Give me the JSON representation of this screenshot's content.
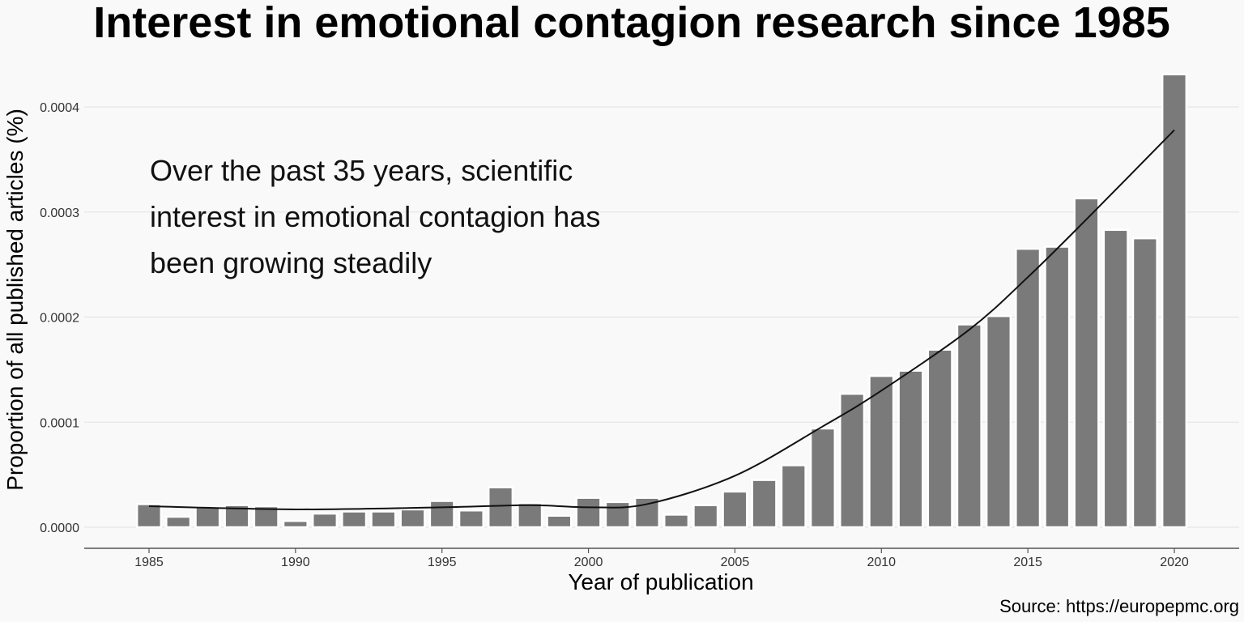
{
  "chart_data": {
    "type": "bar",
    "title": "Interest in emotional contagion research since 1985",
    "xlabel": "Year of publication",
    "ylabel": "Proportion of all published articles (%)",
    "x": [
      1985,
      1986,
      1987,
      1988,
      1989,
      1990,
      1991,
      1992,
      1993,
      1994,
      1995,
      1996,
      1997,
      1998,
      1999,
      2000,
      2001,
      2002,
      2003,
      2004,
      2005,
      2006,
      2007,
      2008,
      2009,
      2010,
      2011,
      2012,
      2013,
      2014,
      2015,
      2016,
      2017,
      2018,
      2019,
      2020
    ],
    "values": [
      2.2e-05,
      1e-05,
      1.9e-05,
      2.1e-05,
      2e-05,
      6e-06,
      1.3e-05,
      1.5e-05,
      1.5e-05,
      1.7e-05,
      2.5e-05,
      1.6e-05,
      3.8e-05,
      2.3e-05,
      1.1e-05,
      2.8e-05,
      2.4e-05,
      2.8e-05,
      1.2e-05,
      2.1e-05,
      3.4e-05,
      4.5e-05,
      5.9e-05,
      9.4e-05,
      0.000127,
      0.000144,
      0.000149,
      0.000169,
      0.000193,
      0.000201,
      0.000265,
      0.000267,
      0.000313,
      0.000283,
      0.000275,
      0.000431
    ],
    "trend": {
      "x": [
        1985,
        1990,
        1995,
        1998,
        2000,
        2002,
        2005,
        2008,
        2010,
        2013,
        2015,
        2017,
        2020
      ],
      "values": [
        2e-05,
        1.7e-05,
        1.9e-05,
        2.1e-05,
        1.9e-05,
        2.2e-05,
        4.9e-05,
        9.6e-05,
        0.00013,
        0.000188,
        0.000238,
        0.000293,
        0.000378
      ]
    },
    "xticks": [
      1985,
      1990,
      1995,
      2000,
      2005,
      2010,
      2015,
      2020
    ],
    "yticks": [
      0.0,
      0.0001,
      0.0002,
      0.0003,
      0.0004
    ],
    "ytick_labels": [
      "0.0000",
      "0.0001",
      "0.0002",
      "0.0003",
      "0.0004"
    ],
    "ylim": [
      0,
      0.00044
    ],
    "grid": true,
    "annotation": [
      "Over the past 35 years, scientific",
      "interest in emotional contagion has",
      "been growing steadily"
    ],
    "source": "Source: https://europepmc.org",
    "colors": {
      "bar": "#7a7a7a",
      "bar_outline": "#ffffff",
      "trend": "#111111",
      "grid": "#e6e6e6",
      "background": "#f9f9f9"
    }
  }
}
